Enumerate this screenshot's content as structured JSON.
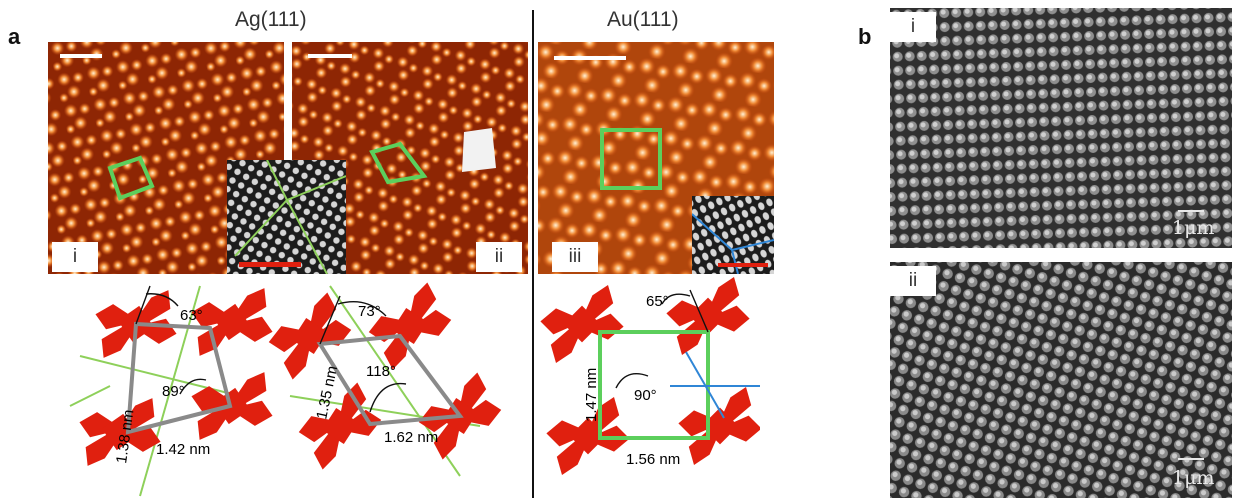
{
  "figure": {
    "panel_a_letter": "a",
    "panel_b_letter": "b",
    "header_ag": "Ag(111)",
    "header_au": "Au(111)",
    "sublabels": {
      "i": "i",
      "ii": "ii",
      "iii": "iii",
      "b_i": "i",
      "b_ii": "ii"
    },
    "angles": {
      "ag_i_top": "63°",
      "ag_i_mid": "89°",
      "ag_ii_top": "73°",
      "ag_ii_mid": "118°",
      "au_top": "65°",
      "au_mid": "90°"
    },
    "lengths": {
      "ag_i_side": "1.38 nm",
      "ag_i_bottom": "1.42 nm",
      "ag_ii_side": "1.35 nm",
      "ag_ii_bottom": "1.62 nm",
      "au_side": "1.47 nm",
      "au_bottom": "1.56 nm"
    },
    "sem_scale": "1μm"
  },
  "colors": {
    "stm_dark": "#7a1c00",
    "stm_mid": "#d2520f",
    "stm_bright": "#ffd9a6",
    "lattice_green": "#5ccf5c",
    "molecule_red": "#e0200f",
    "cell_gray": "#8a8a8a",
    "line_blue": "#2f86d6",
    "sem_dark": "#262626"
  }
}
